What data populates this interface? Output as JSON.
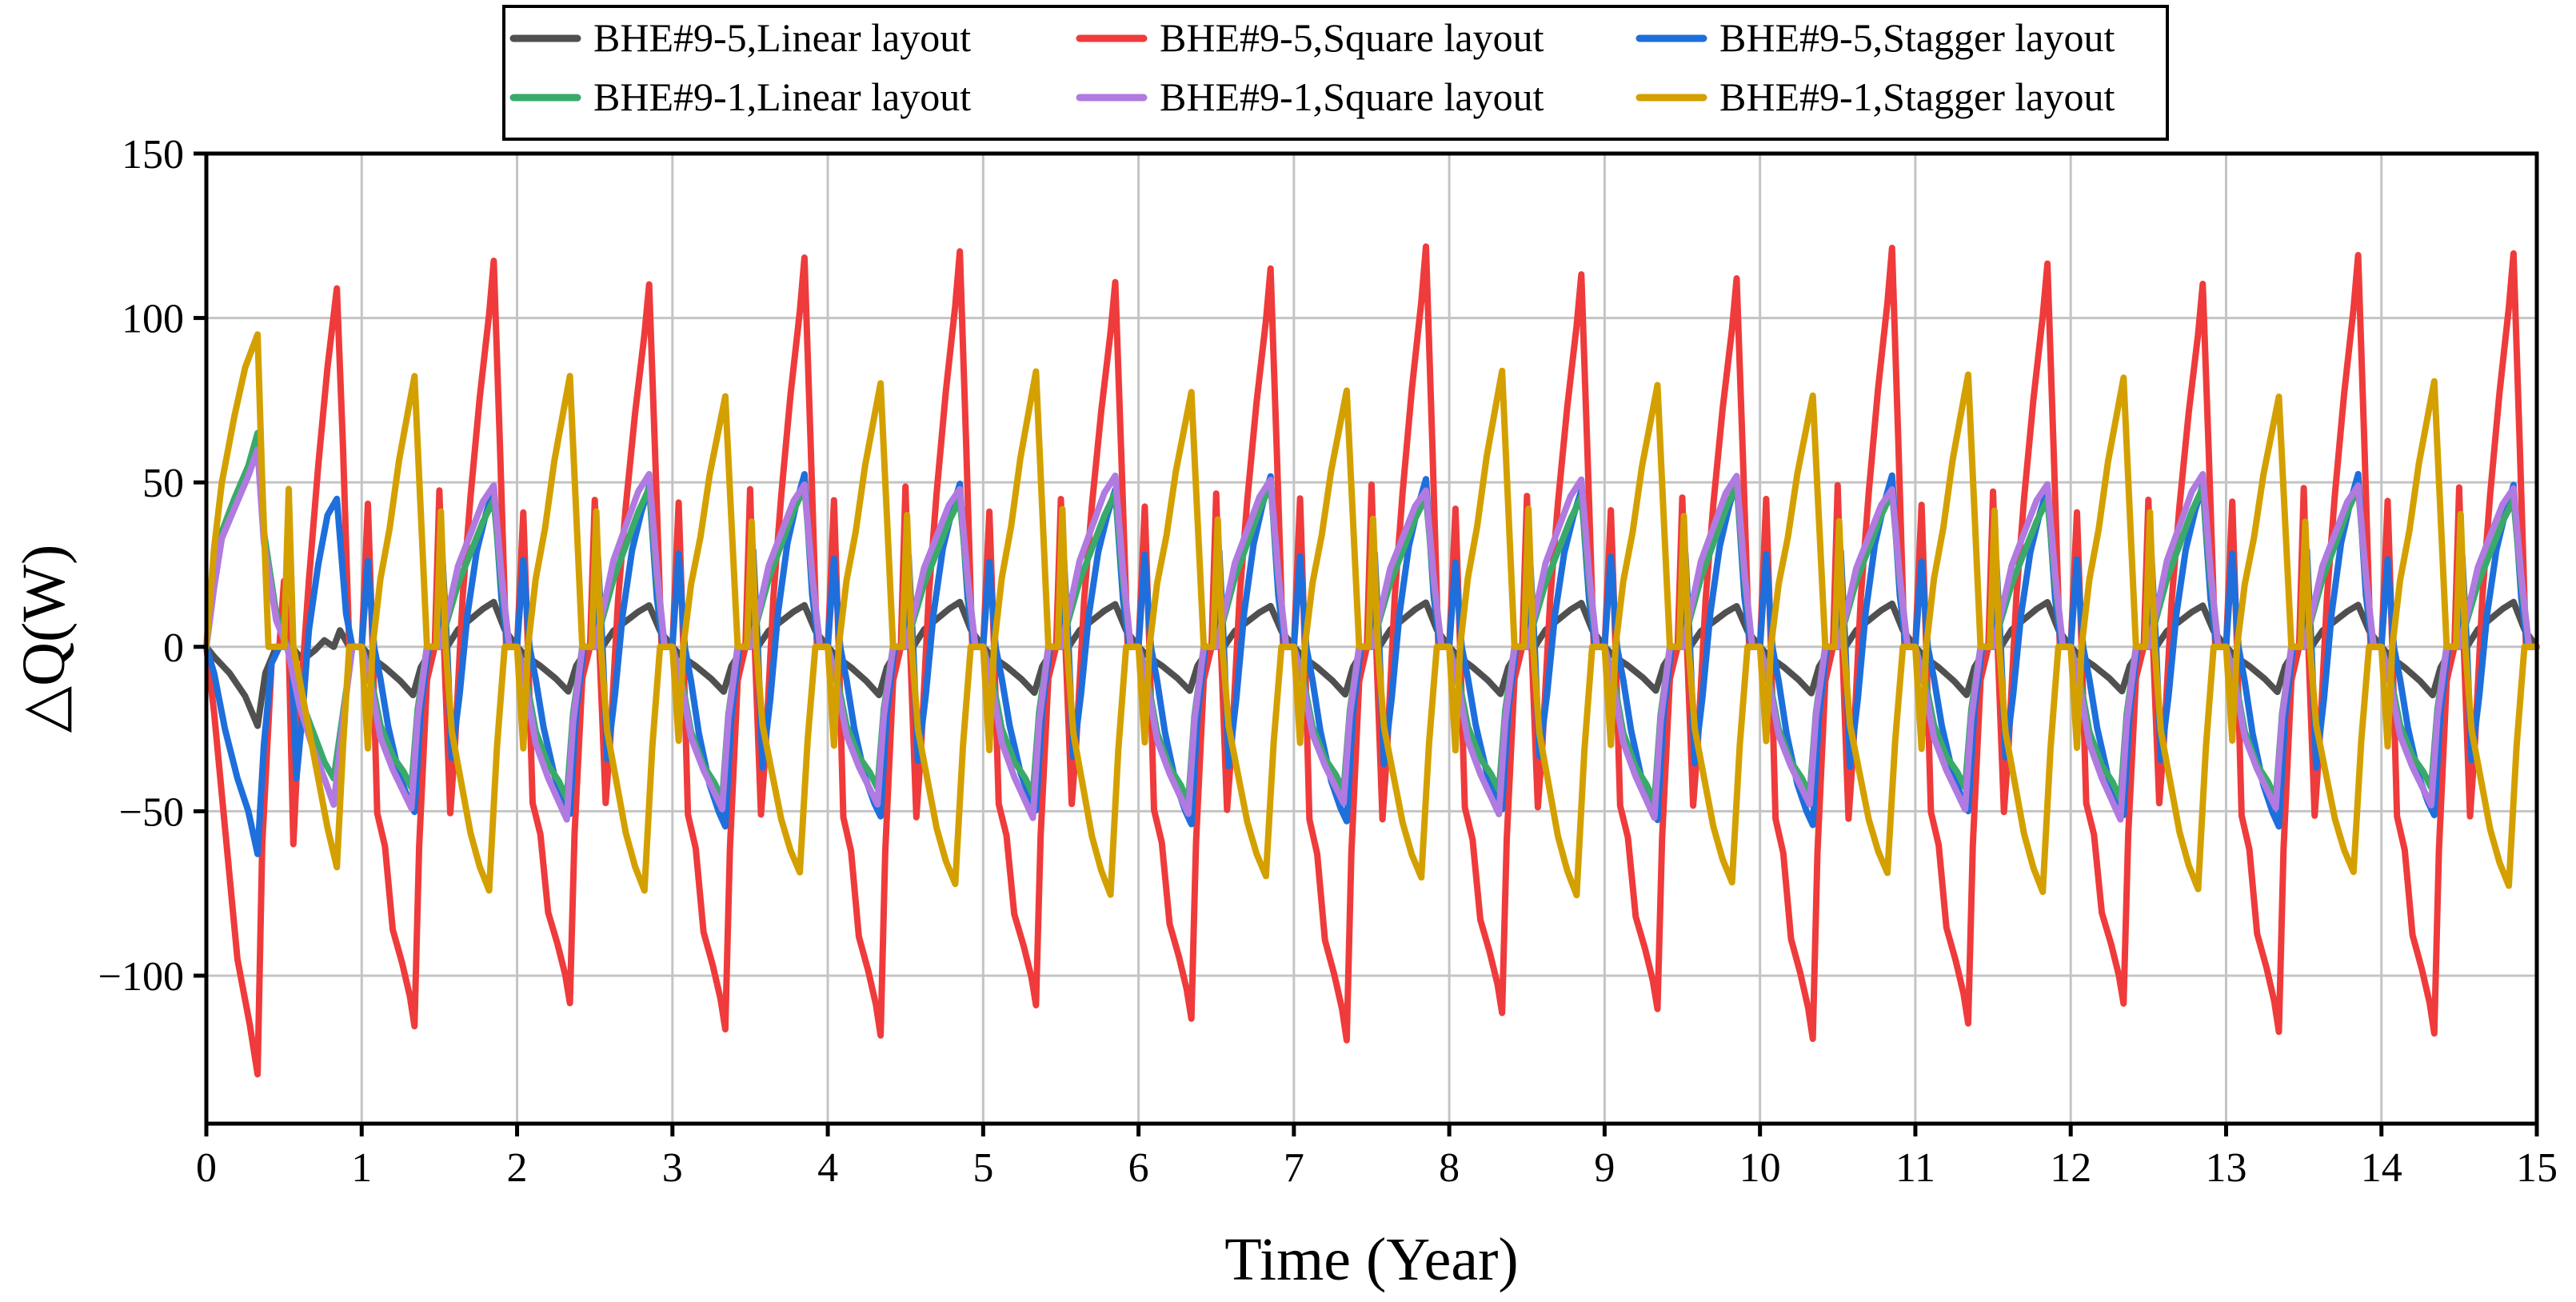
{
  "chart_data": {
    "type": "line",
    "title": "",
    "xlabel": "Time (Year)",
    "ylabel": "△Q(W)",
    "xlim": [
      0,
      15
    ],
    "ylim": [
      -145,
      150
    ],
    "xticks": [
      0,
      1,
      2,
      3,
      4,
      5,
      6,
      7,
      8,
      9,
      10,
      11,
      12,
      13,
      14,
      15
    ],
    "yticks": [
      -100,
      -50,
      0,
      50,
      100,
      150
    ],
    "grid": true,
    "legend_position": "top-center",
    "period_years": 1,
    "series": [
      {
        "name": "BHE#9-5,Linear layout",
        "color": "#505050",
        "keyframes_first_year": [
          [
            0,
            0
          ],
          [
            0.05,
            -3
          ],
          [
            0.15,
            -8
          ],
          [
            0.25,
            -15
          ],
          [
            0.33,
            -24
          ],
          [
            0.38,
            -8
          ],
          [
            0.45,
            0
          ],
          [
            0.55,
            0
          ],
          [
            0.62,
            -4
          ],
          [
            0.7,
            -1
          ],
          [
            0.76,
            2
          ],
          [
            0.82,
            0
          ],
          [
            0.86,
            5
          ],
          [
            0.92,
            0
          ],
          [
            1.0,
            0
          ]
        ],
        "keyframes_typical_year": [
          [
            0,
            0
          ],
          [
            0.06,
            -3
          ],
          [
            0.15,
            -6
          ],
          [
            0.25,
            -10
          ],
          [
            0.33,
            -14
          ],
          [
            0.38,
            -6
          ],
          [
            0.46,
            0
          ],
          [
            0.55,
            0
          ],
          [
            0.62,
            5
          ],
          [
            0.7,
            8
          ],
          [
            0.78,
            11
          ],
          [
            0.85,
            13
          ],
          [
            0.92,
            5
          ],
          [
            1.0,
            0
          ]
        ]
      },
      {
        "name": "BHE#9-5,Square layout",
        "color": "#ef3b3b",
        "keyframes_first_year": [
          [
            0,
            0
          ],
          [
            0.05,
            -20
          ],
          [
            0.12,
            -55
          ],
          [
            0.2,
            -95
          ],
          [
            0.28,
            -115
          ],
          [
            0.33,
            -130
          ],
          [
            0.36,
            -60
          ],
          [
            0.42,
            -5
          ],
          [
            0.47,
            0
          ],
          [
            0.5,
            20
          ],
          [
            0.53,
            0
          ],
          [
            0.56,
            -60
          ],
          [
            0.6,
            -20
          ],
          [
            0.66,
            20
          ],
          [
            0.72,
            55
          ],
          [
            0.78,
            85
          ],
          [
            0.84,
            109
          ],
          [
            0.88,
            60
          ],
          [
            0.92,
            0
          ],
          [
            1.0,
            0
          ]
        ],
        "keyframes_typical_year": [
          [
            0,
            0
          ],
          [
            0.04,
            43
          ],
          [
            0.07,
            0
          ],
          [
            0.1,
            -50
          ],
          [
            0.15,
            -60
          ],
          [
            0.2,
            -85
          ],
          [
            0.26,
            -95
          ],
          [
            0.31,
            -105
          ],
          [
            0.34,
            -114
          ],
          [
            0.37,
            -60
          ],
          [
            0.42,
            -10
          ],
          [
            0.47,
            0
          ],
          [
            0.5,
            47
          ],
          [
            0.53,
            0
          ],
          [
            0.57,
            -50
          ],
          [
            0.6,
            -30
          ],
          [
            0.65,
            15
          ],
          [
            0.7,
            45
          ],
          [
            0.76,
            75
          ],
          [
            0.82,
            100
          ],
          [
            0.85,
            116
          ],
          [
            0.89,
            60
          ],
          [
            0.93,
            0
          ],
          [
            1.0,
            0
          ]
        ]
      },
      {
        "name": "BHE#9-5,Stagger layout",
        "color": "#1e6fdc",
        "keyframes_first_year": [
          [
            0,
            0
          ],
          [
            0.05,
            -8
          ],
          [
            0.12,
            -25
          ],
          [
            0.2,
            -40
          ],
          [
            0.27,
            -50
          ],
          [
            0.33,
            -63
          ],
          [
            0.37,
            -30
          ],
          [
            0.42,
            -5
          ],
          [
            0.47,
            0
          ],
          [
            0.52,
            0
          ],
          [
            0.55,
            -5
          ],
          [
            0.58,
            -40
          ],
          [
            0.62,
            -20
          ],
          [
            0.66,
            5
          ],
          [
            0.72,
            25
          ],
          [
            0.78,
            40
          ],
          [
            0.84,
            45
          ],
          [
            0.9,
            10
          ],
          [
            0.94,
            0
          ],
          [
            1.0,
            0
          ]
        ],
        "keyframes_typical_year": [
          [
            0,
            0
          ],
          [
            0.04,
            27
          ],
          [
            0.08,
            0
          ],
          [
            0.12,
            -10
          ],
          [
            0.17,
            -25
          ],
          [
            0.24,
            -40
          ],
          [
            0.3,
            -48
          ],
          [
            0.34,
            -52
          ],
          [
            0.38,
            -20
          ],
          [
            0.43,
            0
          ],
          [
            0.49,
            0
          ],
          [
            0.52,
            28
          ],
          [
            0.55,
            0
          ],
          [
            0.58,
            -35
          ],
          [
            0.63,
            -15
          ],
          [
            0.68,
            10
          ],
          [
            0.74,
            30
          ],
          [
            0.8,
            42
          ],
          [
            0.85,
            50
          ],
          [
            0.9,
            15
          ],
          [
            0.94,
            0
          ],
          [
            1.0,
            0
          ]
        ]
      },
      {
        "name": "BHE#9-1,Linear layout",
        "color": "#3aaa6a",
        "keyframes_first_year": [
          [
            0,
            0
          ],
          [
            0.05,
            20
          ],
          [
            0.1,
            35
          ],
          [
            0.18,
            45
          ],
          [
            0.27,
            55
          ],
          [
            0.33,
            65
          ],
          [
            0.37,
            35
          ],
          [
            0.45,
            10
          ],
          [
            0.52,
            0
          ],
          [
            0.6,
            -15
          ],
          [
            0.68,
            -25
          ],
          [
            0.76,
            -35
          ],
          [
            0.82,
            -40
          ],
          [
            0.88,
            -20
          ],
          [
            0.94,
            0
          ],
          [
            1.0,
            0
          ]
        ],
        "keyframes_typical_year": [
          [
            0,
            0
          ],
          [
            0.06,
            -10
          ],
          [
            0.12,
            -25
          ],
          [
            0.2,
            -35
          ],
          [
            0.27,
            -40
          ],
          [
            0.32,
            -45
          ],
          [
            0.36,
            -20
          ],
          [
            0.42,
            0
          ],
          [
            0.5,
            0
          ],
          [
            0.56,
            10
          ],
          [
            0.62,
            20
          ],
          [
            0.7,
            30
          ],
          [
            0.78,
            40
          ],
          [
            0.85,
            47
          ],
          [
            0.9,
            20
          ],
          [
            0.95,
            0
          ],
          [
            1.0,
            0
          ]
        ]
      },
      {
        "name": "BHE#9-1,Square layout",
        "color": "#b07ae0",
        "keyframes_first_year": [
          [
            0,
            0
          ],
          [
            0.05,
            18
          ],
          [
            0.1,
            33
          ],
          [
            0.18,
            42
          ],
          [
            0.27,
            52
          ],
          [
            0.33,
            60
          ],
          [
            0.37,
            32
          ],
          [
            0.45,
            8
          ],
          [
            0.52,
            0
          ],
          [
            0.6,
            -18
          ],
          [
            0.68,
            -30
          ],
          [
            0.76,
            -40
          ],
          [
            0.82,
            -48
          ],
          [
            0.88,
            -22
          ],
          [
            0.94,
            0
          ],
          [
            1.0,
            0
          ]
        ],
        "keyframes_typical_year": [
          [
            0,
            0
          ],
          [
            0.06,
            -12
          ],
          [
            0.12,
            -28
          ],
          [
            0.2,
            -38
          ],
          [
            0.27,
            -45
          ],
          [
            0.32,
            -50
          ],
          [
            0.36,
            -22
          ],
          [
            0.42,
            0
          ],
          [
            0.5,
            0
          ],
          [
            0.56,
            12
          ],
          [
            0.62,
            25
          ],
          [
            0.7,
            35
          ],
          [
            0.78,
            45
          ],
          [
            0.85,
            50
          ],
          [
            0.9,
            22
          ],
          [
            0.95,
            0
          ],
          [
            1.0,
            0
          ]
        ]
      },
      {
        "name": "BHE#9-1,Stagger layout",
        "color": "#d4a000",
        "keyframes_first_year": [
          [
            0,
            0
          ],
          [
            0.05,
            30
          ],
          [
            0.1,
            50
          ],
          [
            0.18,
            70
          ],
          [
            0.25,
            85
          ],
          [
            0.33,
            95
          ],
          [
            0.36,
            50
          ],
          [
            0.4,
            0
          ],
          [
            0.47,
            0
          ],
          [
            0.5,
            0
          ],
          [
            0.53,
            48
          ],
          [
            0.56,
            0
          ],
          [
            0.6,
            -10
          ],
          [
            0.66,
            -25
          ],
          [
            0.72,
            -40
          ],
          [
            0.78,
            -55
          ],
          [
            0.84,
            -67
          ],
          [
            0.88,
            -30
          ],
          [
            0.92,
            0
          ],
          [
            1.0,
            0
          ]
        ],
        "keyframes_typical_year": [
          [
            0,
            0
          ],
          [
            0.04,
            -30
          ],
          [
            0.07,
            0
          ],
          [
            0.12,
            20
          ],
          [
            0.18,
            35
          ],
          [
            0.24,
            55
          ],
          [
            0.3,
            70
          ],
          [
            0.34,
            80
          ],
          [
            0.38,
            40
          ],
          [
            0.42,
            0
          ],
          [
            0.48,
            0
          ],
          [
            0.51,
            40
          ],
          [
            0.54,
            0
          ],
          [
            0.58,
            -25
          ],
          [
            0.64,
            -40
          ],
          [
            0.7,
            -55
          ],
          [
            0.76,
            -65
          ],
          [
            0.82,
            -72
          ],
          [
            0.87,
            -30
          ],
          [
            0.92,
            0
          ],
          [
            1.0,
            0
          ]
        ]
      }
    ]
  }
}
